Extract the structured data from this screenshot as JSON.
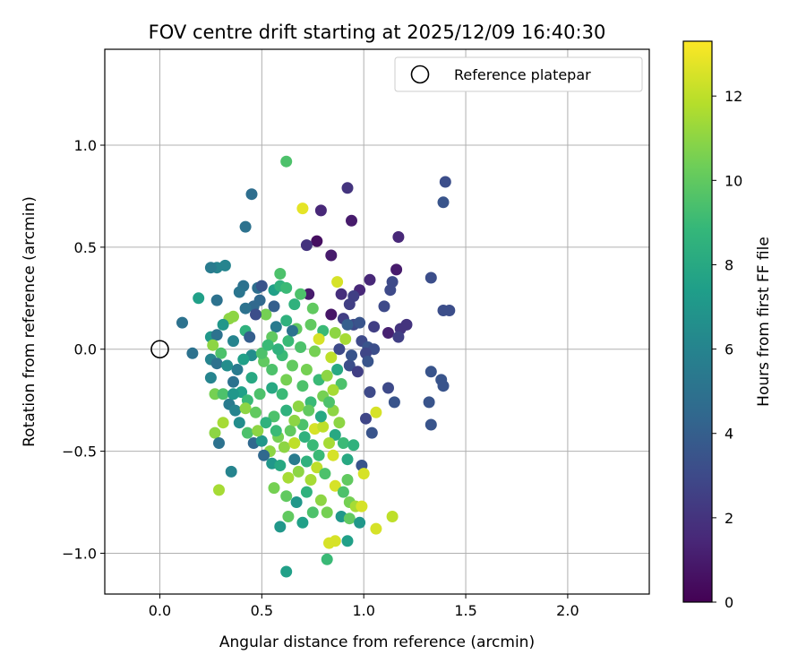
{
  "chart_data": {
    "type": "scatter",
    "title": "FOV centre drift starting at 2025/12/09 16:40:30",
    "xlabel": "Angular distance from reference (arcmin)",
    "ylabel": "Rotation from reference (arcmin)",
    "xlim": [
      -0.27,
      2.4
    ],
    "ylim": [
      -1.2,
      1.47
    ],
    "x_ticks": [
      0.0,
      0.5,
      1.0,
      1.5,
      2.0
    ],
    "x_tick_labels": [
      "0.0",
      "0.5",
      "1.0",
      "1.5",
      "2.0"
    ],
    "y_ticks": [
      -1.0,
      -0.5,
      0.0,
      0.5,
      1.0
    ],
    "y_tick_labels": [
      "−1.0",
      "−0.5",
      "0.0",
      "0.5",
      "1.0"
    ],
    "grid": true,
    "legend": {
      "position": "top-right",
      "entries": [
        "Reference platepar"
      ]
    },
    "reference_point": {
      "x": 0.0,
      "y": 0.0,
      "label": "Reference platepar"
    },
    "colorbar": {
      "label": "Hours from first FF file",
      "range": [
        0,
        13.3
      ],
      "ticks": [
        0,
        2,
        4,
        6,
        8,
        10,
        12
      ],
      "tick_labels": [
        "0",
        "2",
        "4",
        "6",
        "8",
        "10",
        "12"
      ],
      "colormap": "viridis",
      "colormap_colors": [
        "#440154",
        "#482878",
        "#3e4989",
        "#31688e",
        "#26828e",
        "#1f9e89",
        "#35b779",
        "#6ece58",
        "#b5de2b",
        "#fde725"
      ]
    },
    "points": [
      [
        0.62,
        0.92,
        9.5
      ],
      [
        0.7,
        0.69,
        12.8
      ],
      [
        0.45,
        0.76,
        4.8
      ],
      [
        0.92,
        0.79,
        2.0
      ],
      [
        0.79,
        0.68,
        1.5
      ],
      [
        0.94,
        0.63,
        1.0
      ],
      [
        1.4,
        0.82,
        3.2
      ],
      [
        1.39,
        0.72,
        3.5
      ],
      [
        0.77,
        0.53,
        0.5
      ],
      [
        0.72,
        0.51,
        2.0
      ],
      [
        0.84,
        0.46,
        1.0
      ],
      [
        1.17,
        0.55,
        1.5
      ],
      [
        0.42,
        0.6,
        5.0
      ],
      [
        1.16,
        0.39,
        1.0
      ],
      [
        1.33,
        0.35,
        3.2
      ],
      [
        1.14,
        0.33,
        3.0
      ],
      [
        1.03,
        0.34,
        1.5
      ],
      [
        1.13,
        0.29,
        3.0
      ],
      [
        0.87,
        0.33,
        12.5
      ],
      [
        0.98,
        0.29,
        1.5
      ],
      [
        0.89,
        0.27,
        1.8
      ],
      [
        0.95,
        0.26,
        2.5
      ],
      [
        0.73,
        0.27,
        1.0
      ],
      [
        1.1,
        0.21,
        3.0
      ],
      [
        0.93,
        0.22,
        2.5
      ],
      [
        1.39,
        0.19,
        3.2
      ],
      [
        1.42,
        0.19,
        3.2
      ],
      [
        1.21,
        0.12,
        2.0
      ],
      [
        1.18,
        0.1,
        2.0
      ],
      [
        1.12,
        0.08,
        1.2
      ],
      [
        1.17,
        0.06,
        2.5
      ],
      [
        1.05,
        0.11,
        2.5
      ],
      [
        0.84,
        0.17,
        0.8
      ],
      [
        0.9,
        0.15,
        2.5
      ],
      [
        0.95,
        0.12,
        3.0
      ],
      [
        0.99,
        0.04,
        3.0
      ],
      [
        1.02,
        0.01,
        3.5
      ],
      [
        1.05,
        0.0,
        3.2
      ],
      [
        1.01,
        -0.02,
        2.8
      ],
      [
        1.02,
        -0.06,
        3.5
      ],
      [
        0.93,
        -0.08,
        3.2
      ],
      [
        1.33,
        -0.11,
        3.5
      ],
      [
        1.38,
        -0.15,
        3.5
      ],
      [
        1.39,
        -0.18,
        3.5
      ],
      [
        1.12,
        -0.19,
        3.0
      ],
      [
        1.15,
        -0.26,
        3.5
      ],
      [
        1.32,
        -0.26,
        3.5
      ],
      [
        1.33,
        -0.37,
        3.5
      ],
      [
        1.03,
        -0.21,
        3.0
      ],
      [
        1.01,
        -0.34,
        2.8
      ],
      [
        1.06,
        -0.31,
        12.5
      ],
      [
        1.04,
        -0.41,
        3.5
      ],
      [
        0.28,
        0.4,
        6.0
      ],
      [
        0.32,
        0.41,
        6.0
      ],
      [
        0.25,
        0.4,
        5.5
      ],
      [
        0.19,
        0.25,
        7.5
      ],
      [
        0.28,
        0.24,
        5.0
      ],
      [
        0.11,
        0.13,
        5.0
      ],
      [
        0.16,
        -0.02,
        5.0
      ],
      [
        0.41,
        0.31,
        5.0
      ],
      [
        0.39,
        0.28,
        5.2
      ],
      [
        0.48,
        0.3,
        4.8
      ],
      [
        0.5,
        0.31,
        3.5
      ],
      [
        0.56,
        0.29,
        7.5
      ],
      [
        0.59,
        0.31,
        8.5
      ],
      [
        0.62,
        0.3,
        9.0
      ],
      [
        0.59,
        0.37,
        9.5
      ],
      [
        0.66,
        0.22,
        8.5
      ],
      [
        0.69,
        0.27,
        9.5
      ],
      [
        0.75,
        0.2,
        10.0
      ],
      [
        0.49,
        0.24,
        4.5
      ],
      [
        0.46,
        0.21,
        4.5
      ],
      [
        0.42,
        0.2,
        5.0
      ],
      [
        0.52,
        0.17,
        10.5
      ],
      [
        0.47,
        0.17,
        3.2
      ],
      [
        0.36,
        0.16,
        11.0
      ],
      [
        0.34,
        0.15,
        11.0
      ],
      [
        0.31,
        0.12,
        7.0
      ],
      [
        0.25,
        0.06,
        7.0
      ],
      [
        0.28,
        0.07,
        5.0
      ],
      [
        0.36,
        0.04,
        6.0
      ],
      [
        0.42,
        0.09,
        8.5
      ],
      [
        0.57,
        0.11,
        5.5
      ],
      [
        0.62,
        0.14,
        8.5
      ],
      [
        0.67,
        0.1,
        10.0
      ],
      [
        0.74,
        0.12,
        10.0
      ],
      [
        0.8,
        0.09,
        9.0
      ],
      [
        0.86,
        0.08,
        11.0
      ],
      [
        0.91,
        0.05,
        11.5
      ],
      [
        0.78,
        0.05,
        12.5
      ],
      [
        0.55,
        0.06,
        10.0
      ],
      [
        0.63,
        0.04,
        9.0
      ],
      [
        0.26,
        0.02,
        11.0
      ],
      [
        0.3,
        -0.02,
        9.5
      ],
      [
        0.25,
        -0.05,
        6.0
      ],
      [
        0.28,
        -0.07,
        5.0
      ],
      [
        0.38,
        -0.1,
        5.5
      ],
      [
        0.45,
        -0.03,
        6.5
      ],
      [
        0.51,
        -0.06,
        10.0
      ],
      [
        0.6,
        -0.03,
        9.0
      ],
      [
        0.65,
        -0.08,
        10.0
      ],
      [
        0.72,
        -0.1,
        10.5
      ],
      [
        0.84,
        -0.04,
        12.0
      ],
      [
        0.87,
        -0.1,
        8.0
      ],
      [
        0.25,
        -0.14,
        6.0
      ],
      [
        0.36,
        -0.16,
        5.0
      ],
      [
        0.4,
        -0.21,
        7.5
      ],
      [
        0.43,
        -0.25,
        9.0
      ],
      [
        0.49,
        -0.22,
        9.5
      ],
      [
        0.55,
        -0.19,
        8.0
      ],
      [
        0.62,
        -0.15,
        10.5
      ],
      [
        0.7,
        -0.18,
        9.5
      ],
      [
        0.78,
        -0.15,
        9.0
      ],
      [
        0.82,
        -0.13,
        11.0
      ],
      [
        0.89,
        -0.17,
        9.5
      ],
      [
        0.27,
        -0.22,
        10.5
      ],
      [
        0.31,
        -0.22,
        9.5
      ],
      [
        0.34,
        -0.27,
        5.5
      ],
      [
        0.37,
        -0.3,
        6.0
      ],
      [
        0.42,
        -0.29,
        11.0
      ],
      [
        0.47,
        -0.31,
        10.0
      ],
      [
        0.56,
        -0.33,
        9.5
      ],
      [
        0.62,
        -0.3,
        8.5
      ],
      [
        0.68,
        -0.28,
        11.0
      ],
      [
        0.74,
        -0.26,
        9.0
      ],
      [
        0.8,
        -0.23,
        10.5
      ],
      [
        0.85,
        -0.3,
        11.0
      ],
      [
        0.31,
        -0.36,
        11.5
      ],
      [
        0.27,
        -0.41,
        11.0
      ],
      [
        0.29,
        -0.46,
        5.0
      ],
      [
        0.35,
        -0.6,
        6.0
      ],
      [
        0.29,
        -0.69,
        11.5
      ],
      [
        0.43,
        -0.41,
        9.5
      ],
      [
        0.46,
        -0.46,
        4.5
      ],
      [
        0.5,
        -0.45,
        7.0
      ],
      [
        0.54,
        -0.5,
        11.0
      ],
      [
        0.58,
        -0.43,
        10.5
      ],
      [
        0.64,
        -0.4,
        10.0
      ],
      [
        0.7,
        -0.37,
        9.5
      ],
      [
        0.76,
        -0.39,
        12.5
      ],
      [
        0.8,
        -0.38,
        12.0
      ],
      [
        0.86,
        -0.42,
        8.0
      ],
      [
        0.9,
        -0.46,
        9.0
      ],
      [
        0.95,
        -0.47,
        8.5
      ],
      [
        0.51,
        -0.52,
        4.5
      ],
      [
        0.55,
        -0.56,
        7.0
      ],
      [
        0.59,
        -0.57,
        8.0
      ],
      [
        0.66,
        -0.54,
        5.5
      ],
      [
        0.72,
        -0.55,
        8.5
      ],
      [
        0.77,
        -0.58,
        12.0
      ],
      [
        0.85,
        -0.52,
        12.5
      ],
      [
        0.92,
        -0.54,
        8.0
      ],
      [
        0.99,
        -0.57,
        3.5
      ],
      [
        1.0,
        -0.61,
        12.5
      ],
      [
        0.56,
        -0.68,
        10.5
      ],
      [
        0.62,
        -0.72,
        10.0
      ],
      [
        0.67,
        -0.75,
        7.0
      ],
      [
        0.72,
        -0.7,
        8.5
      ],
      [
        0.79,
        -0.74,
        11.0
      ],
      [
        0.86,
        -0.67,
        12.5
      ],
      [
        0.9,
        -0.7,
        9.5
      ],
      [
        0.93,
        -0.75,
        10.5
      ],
      [
        0.96,
        -0.77,
        11.5
      ],
      [
        0.99,
        -0.77,
        12.5
      ],
      [
        0.63,
        -0.82,
        10.0
      ],
      [
        0.7,
        -0.85,
        7.5
      ],
      [
        0.75,
        -0.8,
        9.5
      ],
      [
        0.82,
        -0.8,
        10.5
      ],
      [
        0.89,
        -0.82,
        7.0
      ],
      [
        0.93,
        -0.83,
        10.0
      ],
      [
        0.98,
        -0.85,
        7.0
      ],
      [
        1.06,
        -0.88,
        12.5
      ],
      [
        1.14,
        -0.82,
        12.0
      ],
      [
        0.59,
        -0.87,
        7.0
      ],
      [
        0.83,
        -0.95,
        12.5
      ],
      [
        0.86,
        -0.94,
        12.5
      ],
      [
        0.92,
        -0.94,
        7.5
      ],
      [
        0.82,
        -1.03,
        9.0
      ],
      [
        0.62,
        -1.09,
        7.5
      ],
      [
        0.55,
        -0.1,
        9.5
      ],
      [
        0.6,
        -0.22,
        9.0
      ],
      [
        0.66,
        -0.35,
        11.0
      ],
      [
        0.71,
        -0.43,
        8.5
      ],
      [
        0.75,
        -0.47,
        9.0
      ],
      [
        0.79,
        -0.33,
        8.0
      ],
      [
        0.83,
        -0.26,
        9.5
      ],
      [
        0.73,
        -0.3,
        10.0
      ],
      [
        0.68,
        -0.6,
        11.0
      ],
      [
        0.74,
        -0.64,
        11.5
      ],
      [
        0.81,
        -0.61,
        9.5
      ],
      [
        0.63,
        -0.63,
        11.5
      ],
      [
        0.57,
        -0.4,
        9.0
      ],
      [
        0.52,
        -0.36,
        8.5
      ],
      [
        0.48,
        -0.4,
        11.0
      ],
      [
        0.45,
        -0.14,
        8.0
      ],
      [
        0.5,
        -0.02,
        9.5
      ],
      [
        0.53,
        0.02,
        9.0
      ],
      [
        0.58,
        0.0,
        8.5
      ],
      [
        0.69,
        0.01,
        9.5
      ],
      [
        0.76,
        -0.01,
        10.5
      ],
      [
        0.85,
        -0.2,
        11.5
      ],
      [
        0.88,
        -0.36,
        11.0
      ],
      [
        0.92,
        -0.64,
        10.0
      ],
      [
        0.61,
        -0.48,
        11.0
      ],
      [
        0.66,
        -0.46,
        12.0
      ],
      [
        0.78,
        -0.52,
        9.0
      ],
      [
        0.83,
        -0.46,
        11.5
      ],
      [
        0.36,
        -0.22,
        7.0
      ],
      [
        0.39,
        -0.36,
        6.5
      ],
      [
        0.41,
        -0.05,
        7.5
      ],
      [
        0.33,
        -0.08,
        6.5
      ],
      [
        0.44,
        0.06,
        4.0
      ],
      [
        0.56,
        0.21,
        4.0
      ],
      [
        0.65,
        0.09,
        5.0
      ],
      [
        0.88,
        0.0,
        3.0
      ],
      [
        0.94,
        -0.03,
        3.5
      ],
      [
        0.97,
        -0.11,
        2.5
      ],
      [
        0.98,
        0.13,
        3.5
      ],
      [
        0.92,
        0.12,
        4.0
      ]
    ]
  }
}
